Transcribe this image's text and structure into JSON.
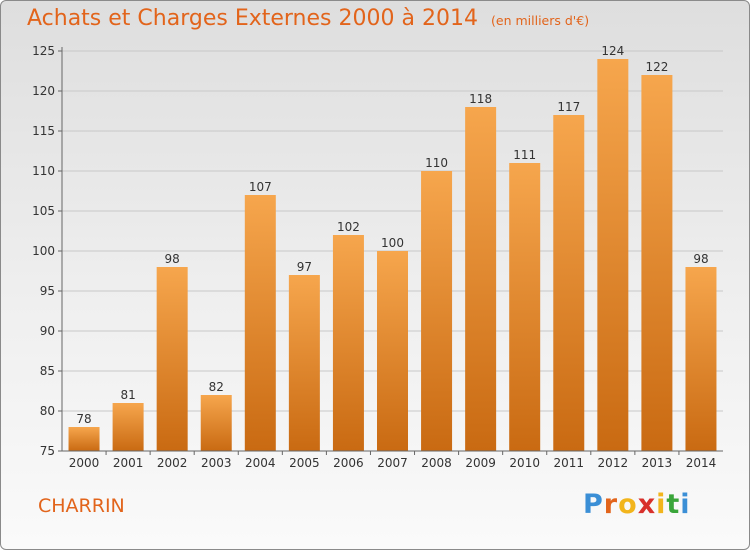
{
  "title": "Achats et Charges Externes 2000 à 2014",
  "unit_note": "(en milliers d'€)",
  "city": "CHARRIN",
  "logo": {
    "letters": [
      "P",
      "r",
      "o",
      "x",
      "i",
      "t",
      "i"
    ],
    "colors": [
      "#3b8fd6",
      "#e2641b",
      "#f2b51c",
      "#d8302b",
      "#f2b51c",
      "#3aa53a",
      "#3b8fd6"
    ]
  },
  "colors": {
    "accent": "#e2641b",
    "bar_top": "#f6a64d",
    "bar_bottom": "#c96a12",
    "grid": "#c8c8c8"
  },
  "chart_data": {
    "type": "bar",
    "categories": [
      "2000",
      "2001",
      "2002",
      "2003",
      "2004",
      "2005",
      "2006",
      "2007",
      "2008",
      "2009",
      "2010",
      "2011",
      "2012",
      "2013",
      "2014"
    ],
    "values": [
      78,
      81,
      98,
      82,
      107,
      97,
      102,
      100,
      110,
      118,
      111,
      117,
      124,
      122,
      98
    ],
    "title": "Achats et Charges Externes 2000 à 2014",
    "ylim": [
      75,
      125
    ],
    "yticks": [
      75,
      80,
      85,
      90,
      95,
      100,
      105,
      110,
      115,
      120,
      125
    ],
    "grid": true,
    "data_labels": true
  }
}
